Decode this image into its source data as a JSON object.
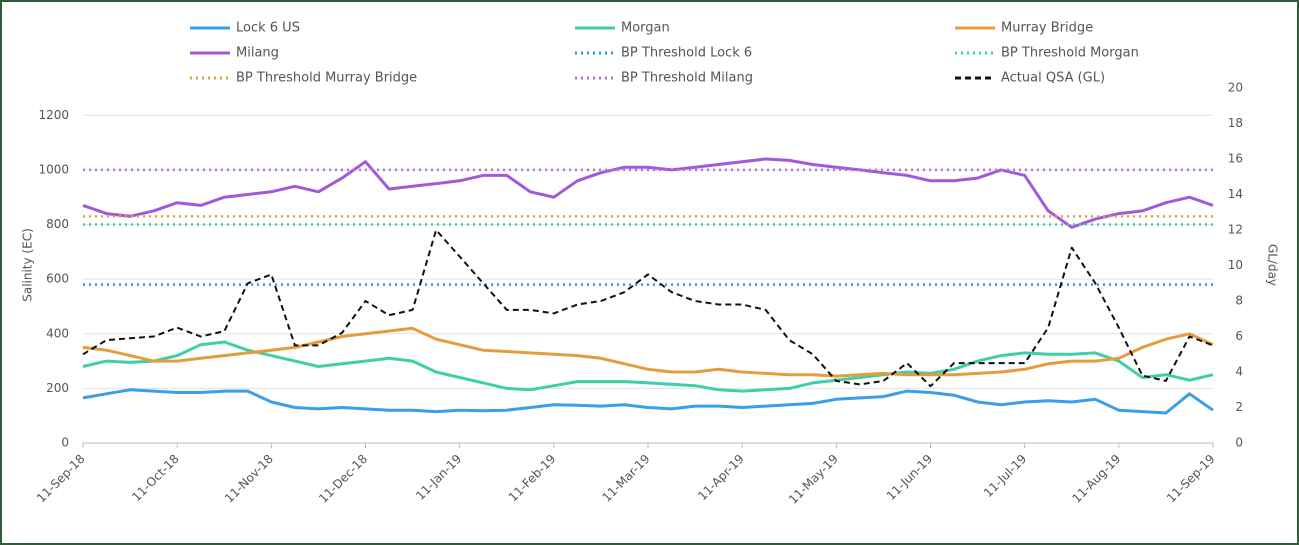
{
  "chart_data": {
    "type": "line",
    "categories": [
      "11-Sep-18",
      null,
      null,
      null,
      "11-Oct-18",
      null,
      null,
      null,
      "11-Nov-18",
      null,
      null,
      null,
      "11-Dec-18",
      null,
      null,
      null,
      "11-Jan-19",
      null,
      null,
      null,
      "11-Feb-19",
      null,
      null,
      null,
      "11-Mar-19",
      null,
      null,
      null,
      "11-Apr-19",
      null,
      null,
      null,
      "11-May-19",
      null,
      null,
      null,
      "11-Jun-19",
      null,
      null,
      null,
      "11-Jul-19",
      null,
      null,
      null,
      "11-Aug-19",
      null,
      null,
      null,
      "11-Sep-19"
    ],
    "series": [
      {
        "name": "Lock 6 US",
        "color": "#3a9ee8",
        "values": [
          165,
          180,
          195,
          190,
          185,
          185,
          190,
          190,
          150,
          130,
          125,
          130,
          125,
          120,
          120,
          115,
          120,
          118,
          120,
          130,
          140,
          138,
          135,
          140,
          130,
          125,
          135,
          135,
          130,
          135,
          140,
          145,
          160,
          165,
          170,
          190,
          185,
          175,
          150,
          140,
          150,
          155,
          150,
          160,
          120,
          115,
          110,
          180,
          120
        ]
      },
      {
        "name": "Morgan",
        "color": "#3fcfa8",
        "values": [
          280,
          300,
          295,
          300,
          320,
          360,
          370,
          340,
          320,
          300,
          280,
          290,
          300,
          310,
          300,
          260,
          240,
          220,
          200,
          195,
          210,
          225,
          225,
          225,
          220,
          215,
          210,
          195,
          190,
          195,
          200,
          220,
          230,
          240,
          250,
          260,
          255,
          270,
          300,
          320,
          330,
          325,
          325,
          330,
          300,
          240,
          250,
          230,
          250
        ]
      },
      {
        "name": "Murray Bridge",
        "color": "#e39d3c",
        "values": [
          350,
          340,
          320,
          300,
          300,
          310,
          320,
          330,
          340,
          350,
          370,
          390,
          400,
          410,
          420,
          380,
          360,
          340,
          335,
          330,
          325,
          320,
          310,
          290,
          270,
          260,
          260,
          270,
          260,
          255,
          250,
          250,
          245,
          250,
          255,
          250,
          250,
          250,
          255,
          260,
          270,
          290,
          300,
          300,
          310,
          350,
          380,
          400,
          360
        ]
      },
      {
        "name": "Milang",
        "color": "#a259d9",
        "values": [
          870,
          840,
          830,
          850,
          880,
          870,
          900,
          910,
          920,
          940,
          920,
          970,
          1030,
          930,
          940,
          950,
          960,
          980,
          980,
          920,
          900,
          960,
          990,
          1010,
          1010,
          1000,
          1010,
          1020,
          1030,
          1040,
          1035,
          1020,
          1010,
          1000,
          990,
          980,
          960,
          960,
          970,
          1000,
          980,
          850,
          790,
          820,
          840,
          850,
          880,
          900,
          870
        ]
      },
      {
        "name": "BP Threshold Lock 6",
        "color": "#2c9ad8",
        "style": "dotted",
        "value": 580
      },
      {
        "name": "BP Threshold Morgan",
        "color": "#3fcfa8",
        "style": "dotted",
        "value": 800
      },
      {
        "name": "BP Threshold Murray Bridge",
        "color": "#e0a040",
        "style": "dotted",
        "value": 830
      },
      {
        "name": "BP Threshold Milang",
        "color": "#b070e0",
        "style": "dotted",
        "value": 1000
      },
      {
        "name": "Actual QSA (GL)",
        "color": "#111111",
        "style": "dashed",
        "axis": "y2",
        "values": [
          5.0,
          5.8,
          5.9,
          6.0,
          6.5,
          6.0,
          6.3,
          9.0,
          9.5,
          5.5,
          5.5,
          6.2,
          8.0,
          7.2,
          7.5,
          12.0,
          10.5,
          9.0,
          7.5,
          7.5,
          7.3,
          7.8,
          8.0,
          8.5,
          9.5,
          8.5,
          8.0,
          7.8,
          7.8,
          7.5,
          5.8,
          5.0,
          3.5,
          3.3,
          3.5,
          4.5,
          3.2,
          4.5,
          4.5,
          4.5,
          4.5,
          6.5,
          11.0,
          9.0,
          6.5,
          3.8,
          3.5,
          6.0,
          5.5
        ]
      }
    ],
    "y_label": "Salinity (EC)",
    "y2_label": "GL/day",
    "ylim": [
      0,
      1300
    ],
    "yticks": [
      0,
      200,
      400,
      600,
      800,
      1000,
      1200
    ],
    "y2lim": [
      0,
      20
    ],
    "y2ticks": [
      0,
      2,
      4,
      6,
      8,
      10,
      12,
      14,
      16,
      18,
      20
    ],
    "grid": true
  }
}
